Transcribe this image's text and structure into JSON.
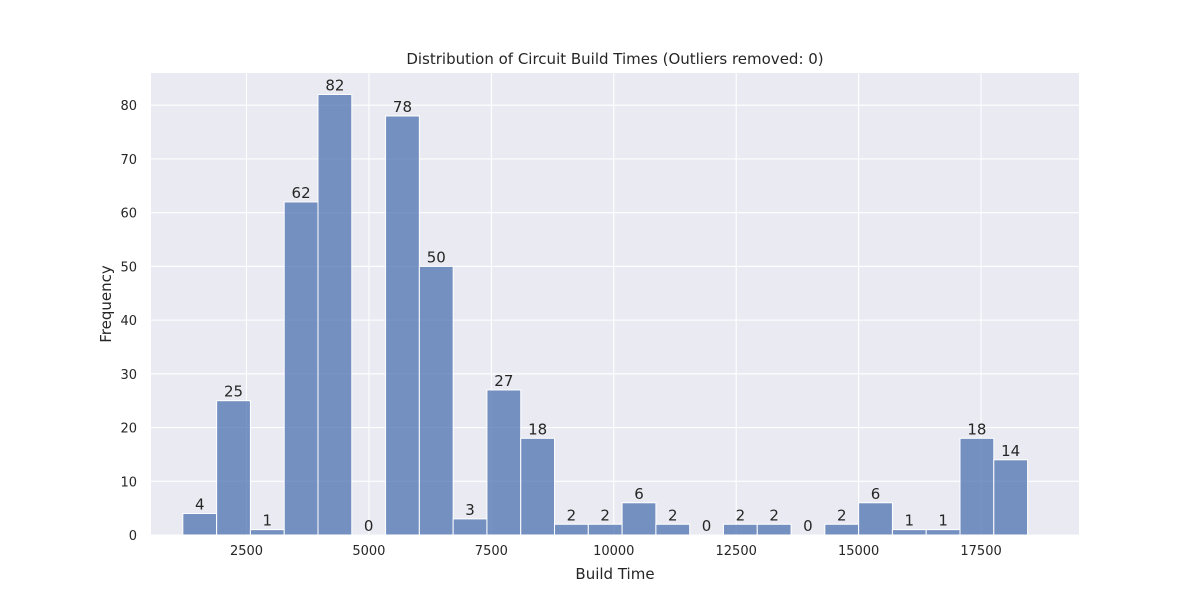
{
  "chart_data": {
    "type": "bar",
    "subtype": "histogram",
    "title": "Distribution of Circuit Build Times (Outliers removed: 0)",
    "xlabel": "Build Time",
    "ylabel": "Frequency",
    "xlim": [
      550,
      19500
    ],
    "ylim": [
      0,
      86
    ],
    "x_ticks": [
      2500,
      5000,
      7500,
      10000,
      12500,
      15000,
      17500
    ],
    "y_ticks": [
      0,
      10,
      20,
      30,
      40,
      50,
      60,
      70,
      80
    ],
    "grid": true,
    "bar_color": "#4c72b0",
    "background_color": "#eaeaf2",
    "bin_start": 1200,
    "bin_width": 690,
    "values": [
      4,
      25,
      1,
      62,
      82,
      0,
      78,
      50,
      3,
      27,
      18,
      2,
      2,
      6,
      2,
      0,
      2,
      2,
      0,
      2,
      6,
      1,
      1,
      18,
      14
    ]
  }
}
